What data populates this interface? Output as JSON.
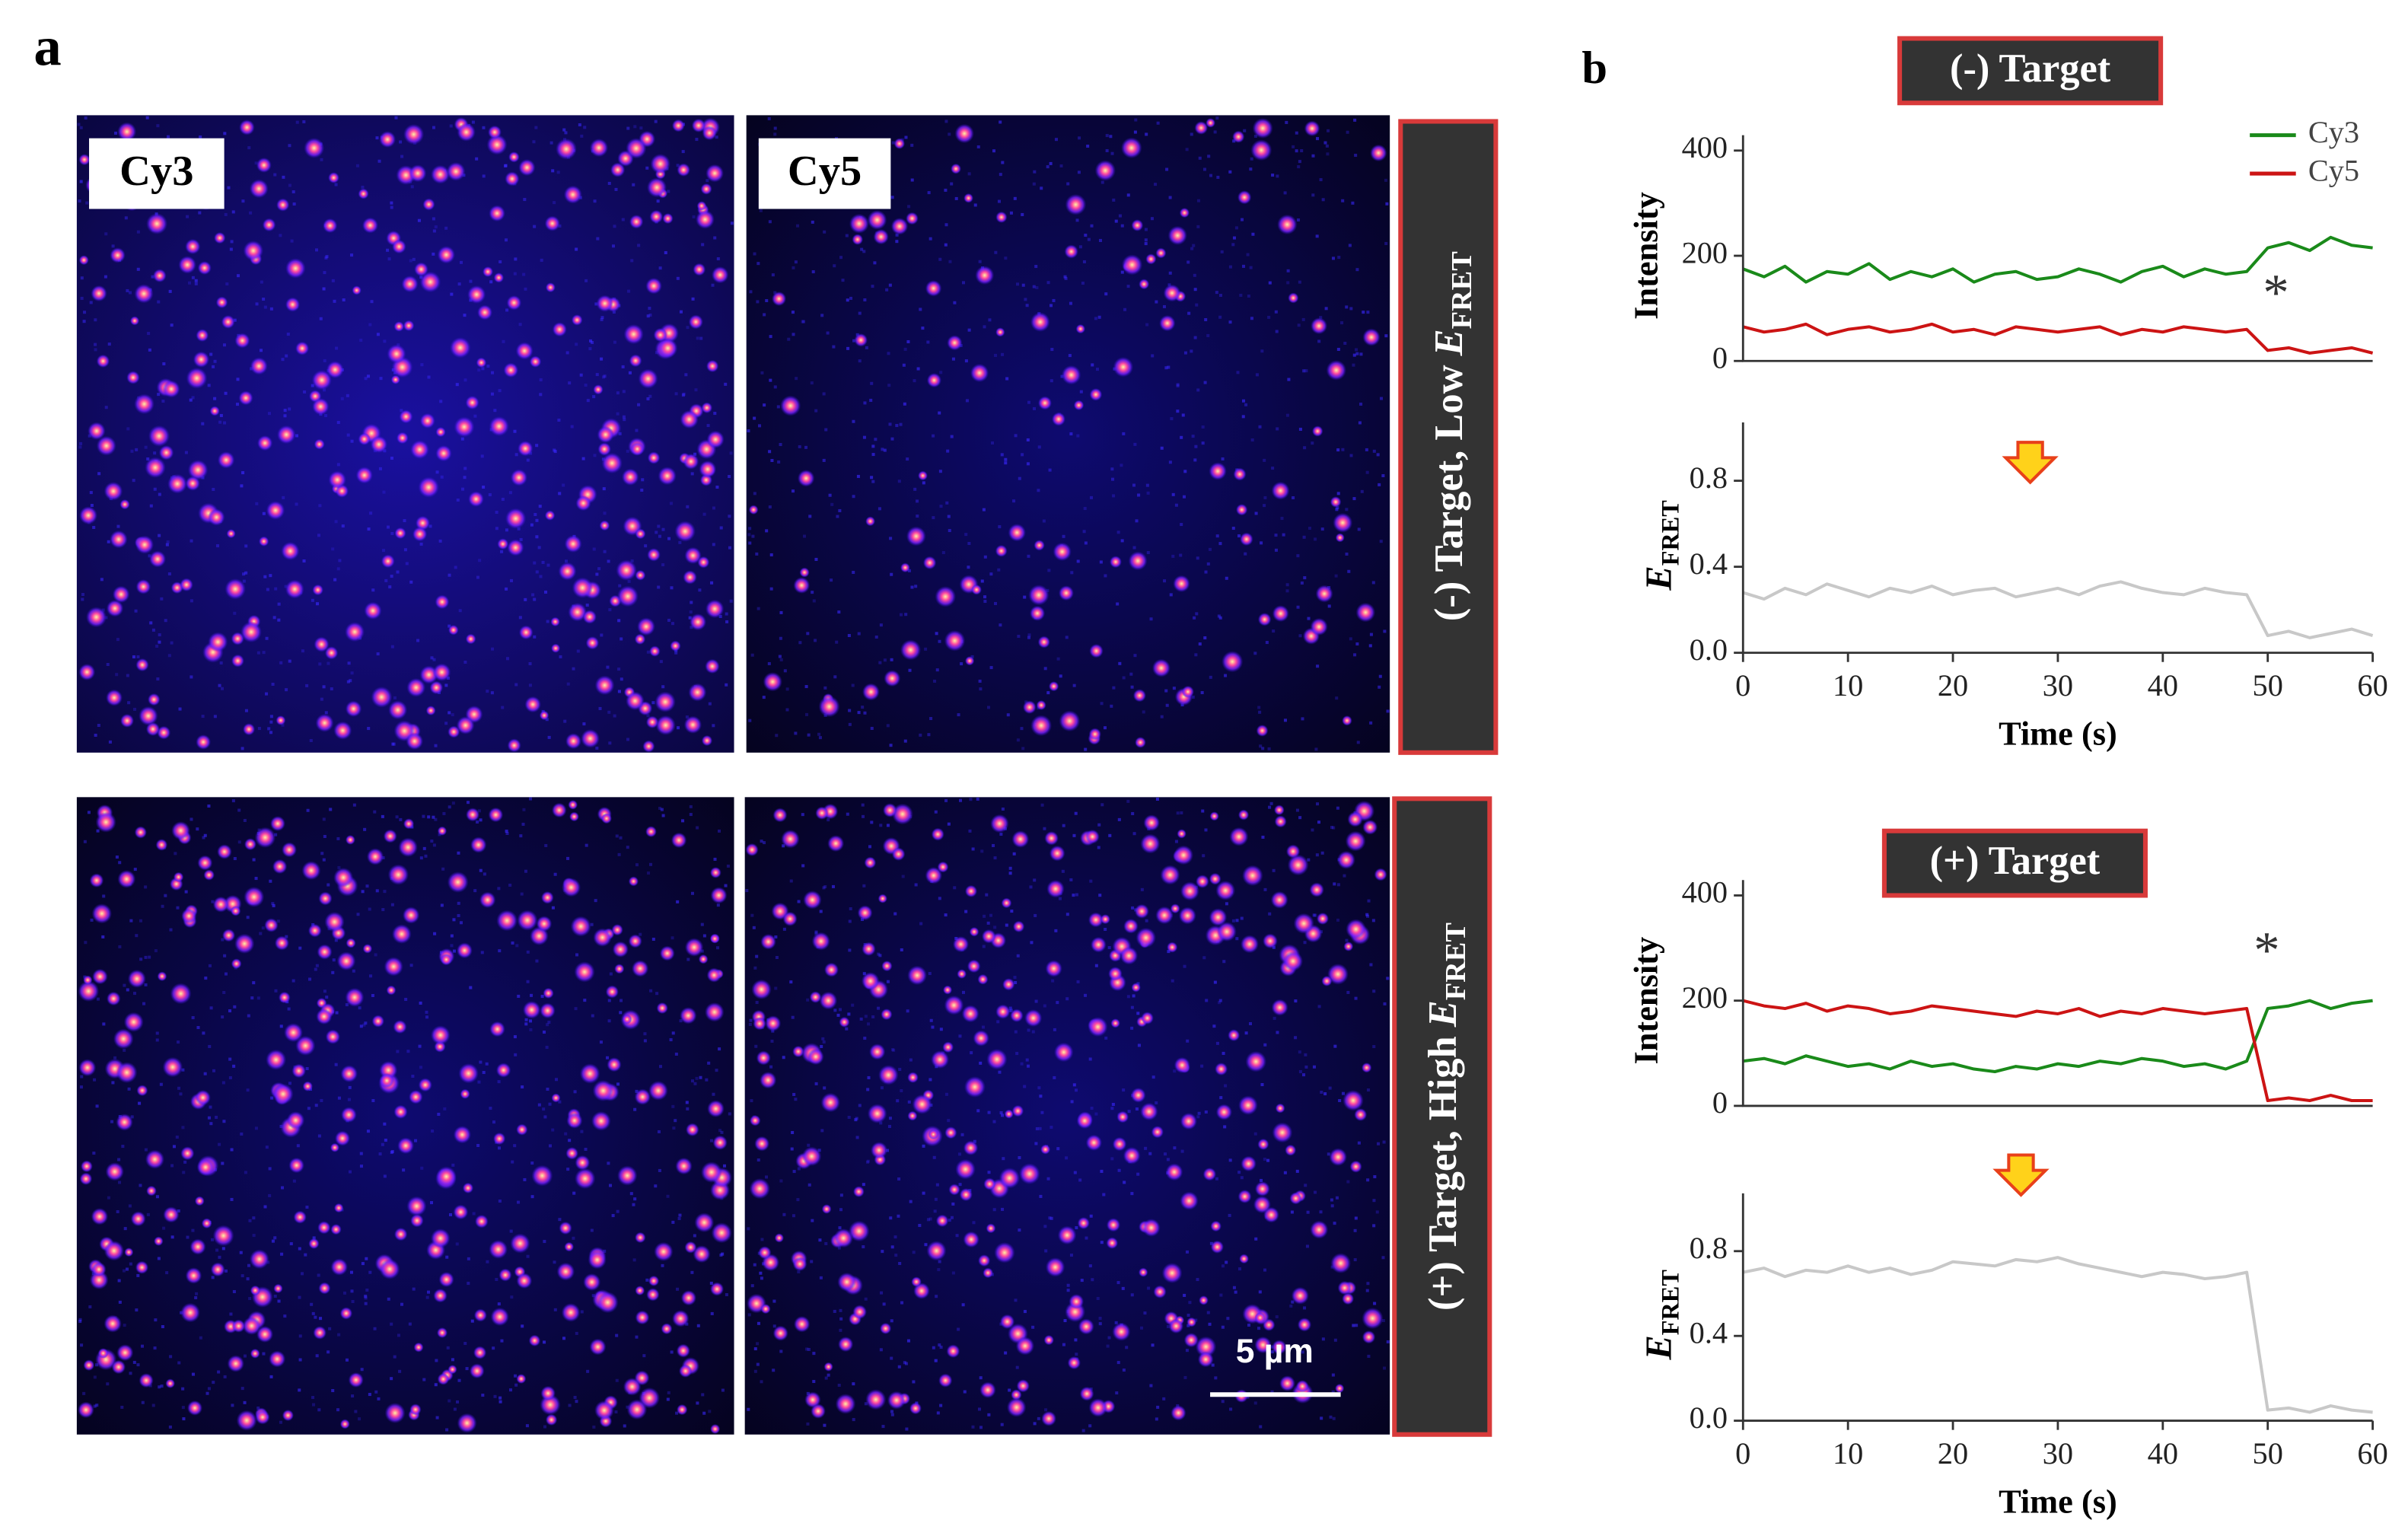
{
  "figure": {
    "panel_a": "a",
    "panel_b": "b",
    "channels": [
      "Cy3",
      "Cy5"
    ],
    "scale_bar": "5 µm",
    "conditions": [
      [
        "(-) Target, Low",
        "E",
        "FRET"
      ],
      [
        "(+) Target, High",
        "E",
        "FRET"
      ]
    ]
  },
  "chart_data": [
    {
      "type": "line",
      "title": "(-) Target",
      "ylabel": "Intensity",
      "x": [
        0,
        2,
        4,
        6,
        8,
        10,
        12,
        14,
        16,
        18,
        20,
        22,
        24,
        26,
        28,
        30,
        32,
        34,
        36,
        38,
        40,
        42,
        44,
        46,
        48,
        50,
        52,
        54,
        56,
        58,
        60
      ],
      "xlim": [
        0,
        60
      ],
      "ylim": [
        0,
        400
      ],
      "yticks": [
        0,
        200,
        400
      ],
      "legend": "upper right",
      "annotation": "*",
      "series": [
        {
          "name": "Cy3",
          "color": "#1a8a1a",
          "values": [
            175,
            160,
            180,
            150,
            170,
            165,
            185,
            155,
            170,
            160,
            175,
            150,
            165,
            170,
            155,
            160,
            175,
            165,
            150,
            170,
            180,
            160,
            175,
            165,
            170,
            215,
            225,
            210,
            235,
            220,
            215
          ]
        },
        {
          "name": "Cy5",
          "color": "#cc1414",
          "values": [
            65,
            55,
            60,
            70,
            50,
            60,
            65,
            55,
            60,
            70,
            55,
            60,
            50,
            65,
            60,
            55,
            60,
            65,
            50,
            60,
            55,
            65,
            60,
            55,
            60,
            20,
            25,
            15,
            20,
            25,
            15
          ]
        }
      ]
    },
    {
      "type": "line",
      "ylabel": [
        "E",
        "FRET"
      ],
      "xlabel": "Time (s)",
      "x": [
        0,
        2,
        4,
        6,
        8,
        10,
        12,
        14,
        16,
        18,
        20,
        22,
        24,
        26,
        28,
        30,
        32,
        34,
        36,
        38,
        40,
        42,
        44,
        46,
        48,
        50,
        52,
        54,
        56,
        58,
        60
      ],
      "xlim": [
        0,
        60
      ],
      "xticks": [
        0,
        10,
        20,
        30,
        40,
        50,
        60
      ],
      "ylim": [
        0,
        1.0
      ],
      "yticks": [
        {
          "value": 0,
          "label": "0.0"
        },
        {
          "value": 0.4,
          "label": "0.4"
        },
        {
          "value": 0.8,
          "label": "0.8"
        }
      ],
      "color": "#c8c8c8",
      "values": [
        0.28,
        0.25,
        0.3,
        0.27,
        0.32,
        0.29,
        0.26,
        0.3,
        0.28,
        0.31,
        0.27,
        0.29,
        0.3,
        0.26,
        0.28,
        0.3,
        0.27,
        0.31,
        0.33,
        0.3,
        0.28,
        0.27,
        0.3,
        0.28,
        0.27,
        0.08,
        0.1,
        0.07,
        0.09,
        0.11,
        0.08
      ]
    },
    {
      "type": "line",
      "title": "(+) Target",
      "ylabel": "Intensity",
      "x": [
        0,
        2,
        4,
        6,
        8,
        10,
        12,
        14,
        16,
        18,
        20,
        22,
        24,
        26,
        28,
        30,
        32,
        34,
        36,
        38,
        40,
        42,
        44,
        46,
        48,
        50,
        52,
        54,
        56,
        58,
        60
      ],
      "xlim": [
        0,
        60
      ],
      "ylim": [
        0,
        400
      ],
      "yticks": [
        0,
        200,
        400
      ],
      "annotation": "*",
      "series": [
        {
          "color": "#1a8a1a",
          "values": [
            85,
            90,
            80,
            95,
            85,
            75,
            80,
            70,
            85,
            75,
            80,
            70,
            65,
            75,
            70,
            80,
            75,
            85,
            80,
            90,
            85,
            75,
            80,
            70,
            85,
            185,
            190,
            200,
            185,
            195,
            200
          ]
        },
        {
          "color": "#cc1414",
          "values": [
            200,
            190,
            185,
            195,
            180,
            190,
            185,
            175,
            180,
            190,
            185,
            180,
            175,
            170,
            180,
            175,
            185,
            170,
            180,
            175,
            185,
            180,
            175,
            180,
            185,
            10,
            15,
            10,
            20,
            10,
            10
          ]
        }
      ]
    },
    {
      "type": "line",
      "ylabel": [
        "E",
        "FRET"
      ],
      "xlabel": "Time (s)",
      "x": [
        0,
        2,
        4,
        6,
        8,
        10,
        12,
        14,
        16,
        18,
        20,
        22,
        24,
        26,
        28,
        30,
        32,
        34,
        36,
        38,
        40,
        42,
        44,
        46,
        48,
        50,
        52,
        54,
        56,
        58,
        60
      ],
      "xlim": [
        0,
        60
      ],
      "xticks": [
        0,
        10,
        20,
        30,
        40,
        50,
        60
      ],
      "ylim": [
        0,
        1.0
      ],
      "yticks": [
        {
          "value": 0,
          "label": "0.0"
        },
        {
          "value": 0.4,
          "label": "0.4"
        },
        {
          "value": 0.8,
          "label": "0.8"
        }
      ],
      "color": "#c8c8c8",
      "values": [
        0.7,
        0.72,
        0.68,
        0.71,
        0.7,
        0.73,
        0.7,
        0.72,
        0.69,
        0.71,
        0.75,
        0.74,
        0.73,
        0.76,
        0.75,
        0.77,
        0.74,
        0.72,
        0.7,
        0.68,
        0.7,
        0.69,
        0.67,
        0.68,
        0.7,
        0.05,
        0.06,
        0.04,
        0.07,
        0.05,
        0.04
      ]
    }
  ]
}
